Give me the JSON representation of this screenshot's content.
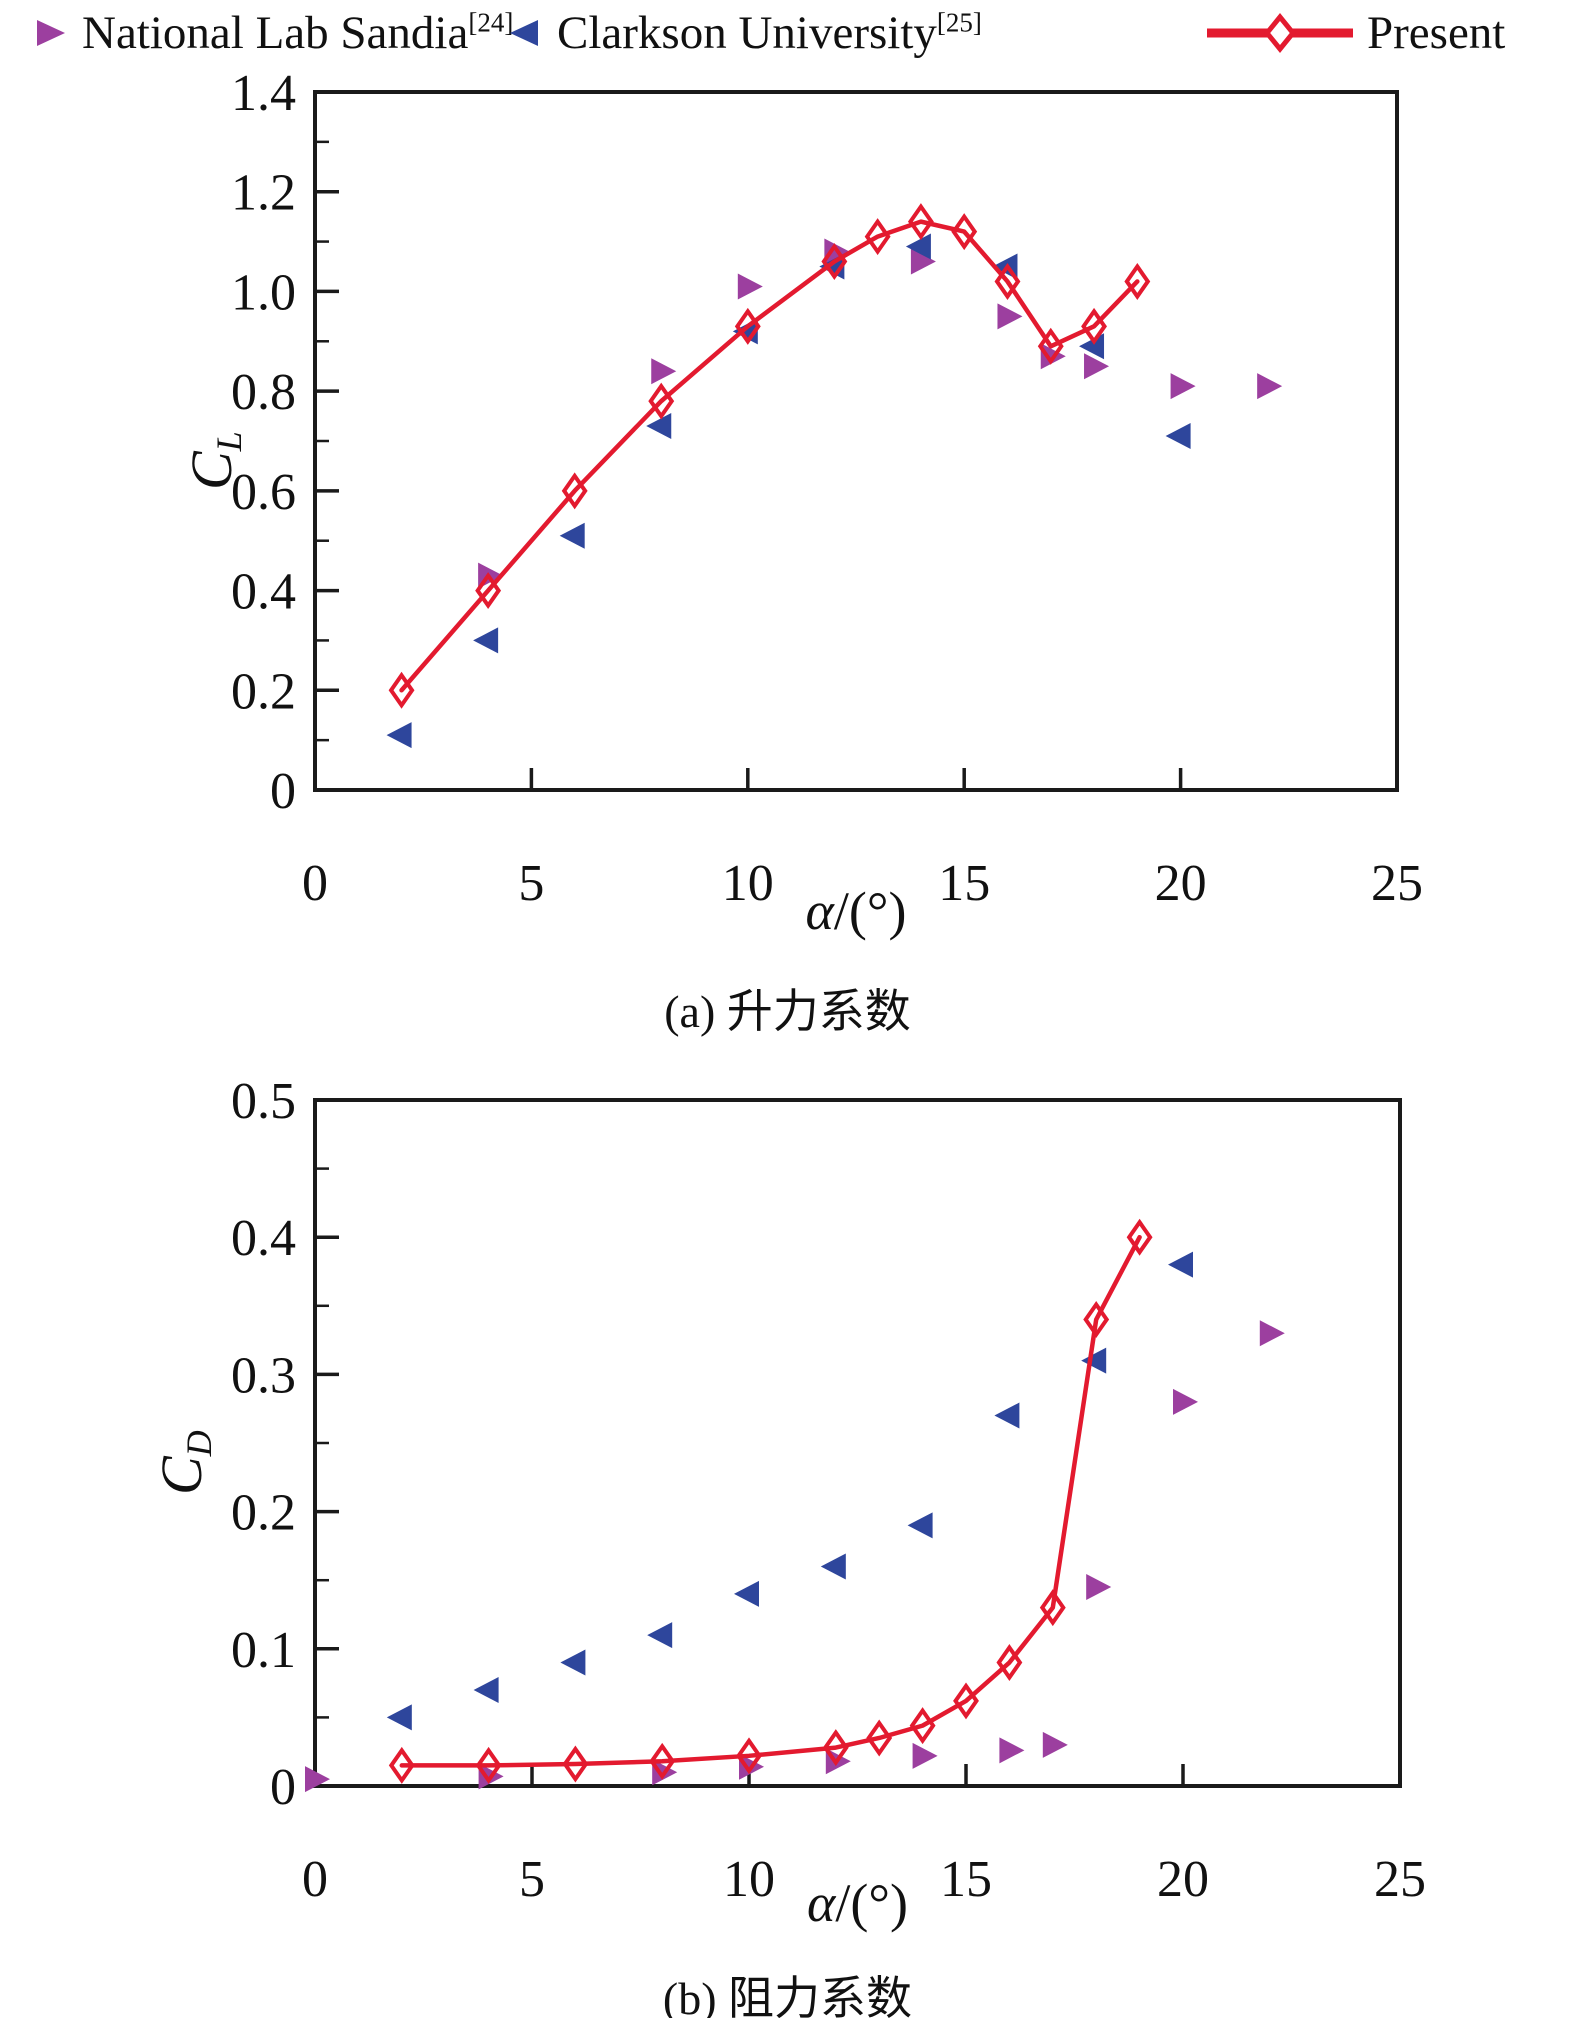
{
  "colors": {
    "sandia_purple": "#9c3f9f",
    "clarkson_blue": "#2e469c",
    "present_red": "#e31a2f",
    "axis_black": "#1a1a1a"
  },
  "legend": {
    "items": [
      {
        "label": "National Lab Sandia",
        "sup": "[24]",
        "marker": "triangle-right-icon",
        "color": "#9c3f9f"
      },
      {
        "label": "Clarkson University",
        "sup": "[25]",
        "marker": "triangle-left-icon",
        "color": "#2e469c"
      },
      {
        "label": "Present",
        "sup": "",
        "marker": "line-diamond-icon",
        "color": "#e31a2f"
      }
    ]
  },
  "chart_data": [
    {
      "dom_id": "chart-a",
      "type": "scatter",
      "caption": "(a) 升力系数",
      "xlabel_var": "α",
      "xlabel_rest": "/(°)",
      "ylabel_base": "C",
      "ylabel_sub": "L",
      "xlim": [
        0,
        25
      ],
      "ylim": [
        0,
        1.4
      ],
      "xticks": [
        0,
        5,
        10,
        15,
        20,
        25
      ],
      "xtick_labels": [
        "0",
        "5",
        "10",
        "15",
        "20",
        "25"
      ],
      "yticks": [
        0,
        0.2,
        0.4,
        0.6,
        0.8,
        1.0,
        1.2,
        1.4
      ],
      "ytick_labels": [
        "0",
        "0.2",
        "0.4",
        "0.6",
        "0.8",
        "1.0",
        "1.2",
        "1.4"
      ],
      "yticks_minor": [
        0.1,
        0.3,
        0.5,
        0.7,
        0.9,
        1.1,
        1.3
      ],
      "grid": false,
      "legend_position": "top-outside",
      "series": [
        {
          "name": "National Lab Sandia [24]",
          "marker": "triangle-right",
          "color": "#9c3f9f",
          "line": false,
          "points": [
            [
              4,
              0.43
            ],
            [
              8,
              0.84
            ],
            [
              10,
              1.01
            ],
            [
              12,
              1.08
            ],
            [
              14,
              1.06
            ],
            [
              16,
              0.95
            ],
            [
              17,
              0.87
            ],
            [
              18,
              0.85
            ],
            [
              20,
              0.81
            ],
            [
              22,
              0.81
            ]
          ]
        },
        {
          "name": "Clarkson University [25]",
          "marker": "triangle-left",
          "color": "#2e469c",
          "line": false,
          "points": [
            [
              2,
              0.11
            ],
            [
              4,
              0.3
            ],
            [
              6,
              0.51
            ],
            [
              8,
              0.73
            ],
            [
              10,
              0.92
            ],
            [
              12,
              1.05
            ],
            [
              14,
              1.09
            ],
            [
              16,
              1.05
            ],
            [
              18,
              0.89
            ],
            [
              20,
              0.71
            ]
          ]
        },
        {
          "name": "Present",
          "marker": "diamond-open",
          "color": "#e31a2f",
          "line": true,
          "points": [
            [
              2,
              0.2
            ],
            [
              4,
              0.4
            ],
            [
              6,
              0.6
            ],
            [
              8,
              0.78
            ],
            [
              10,
              0.93
            ],
            [
              12,
              1.06
            ],
            [
              13,
              1.11
            ],
            [
              14,
              1.14
            ],
            [
              15,
              1.12
            ],
            [
              16,
              1.02
            ],
            [
              17,
              0.89
            ],
            [
              18,
              0.93
            ],
            [
              19,
              1.02
            ]
          ]
        }
      ]
    },
    {
      "dom_id": "chart-b",
      "type": "scatter",
      "caption": "(b) 阻力系数",
      "xlabel_var": "α",
      "xlabel_rest": "/(°)",
      "ylabel_base": "C",
      "ylabel_sub": "D",
      "xlim": [
        0,
        25
      ],
      "ylim": [
        0,
        0.5
      ],
      "xticks": [
        0,
        5,
        10,
        15,
        20,
        25
      ],
      "xtick_labels": [
        "0",
        "5",
        "10",
        "15",
        "20",
        "25"
      ],
      "yticks": [
        0,
        0.1,
        0.2,
        0.3,
        0.4,
        0.5
      ],
      "ytick_labels": [
        "0",
        "0.1",
        "0.2",
        "0.3",
        "0.4",
        "0.5"
      ],
      "yticks_minor": [
        0.05,
        0.15,
        0.25,
        0.35,
        0.45
      ],
      "grid": false,
      "legend_position": "top-outside",
      "series": [
        {
          "name": "National Lab Sandia [24]",
          "marker": "triangle-right",
          "color": "#9c3f9f",
          "line": false,
          "points": [
            [
              0,
              0.005
            ],
            [
              4,
              0.007
            ],
            [
              8,
              0.01
            ],
            [
              10,
              0.014
            ],
            [
              12,
              0.018
            ],
            [
              14,
              0.022
            ],
            [
              16,
              0.026
            ],
            [
              17,
              0.03
            ],
            [
              18,
              0.145
            ],
            [
              20,
              0.28
            ],
            [
              22,
              0.33
            ]
          ]
        },
        {
          "name": "Clarkson University [25]",
          "marker": "triangle-left",
          "color": "#2e469c",
          "line": false,
          "points": [
            [
              2,
              0.05
            ],
            [
              4,
              0.07
            ],
            [
              6,
              0.09
            ],
            [
              8,
              0.11
            ],
            [
              10,
              0.14
            ],
            [
              12,
              0.16
            ],
            [
              14,
              0.19
            ],
            [
              16,
              0.27
            ],
            [
              18,
              0.31
            ],
            [
              20,
              0.38
            ]
          ]
        },
        {
          "name": "Present",
          "marker": "diamond-open",
          "color": "#e31a2f",
          "line": true,
          "points": [
            [
              2,
              0.015
            ],
            [
              4,
              0.015
            ],
            [
              6,
              0.016
            ],
            [
              8,
              0.018
            ],
            [
              10,
              0.022
            ],
            [
              12,
              0.028
            ],
            [
              13,
              0.035
            ],
            [
              14,
              0.044
            ],
            [
              15,
              0.062
            ],
            [
              16,
              0.09
            ],
            [
              17,
              0.13
            ],
            [
              18,
              0.34
            ],
            [
              19,
              0.4
            ]
          ]
        }
      ]
    }
  ]
}
